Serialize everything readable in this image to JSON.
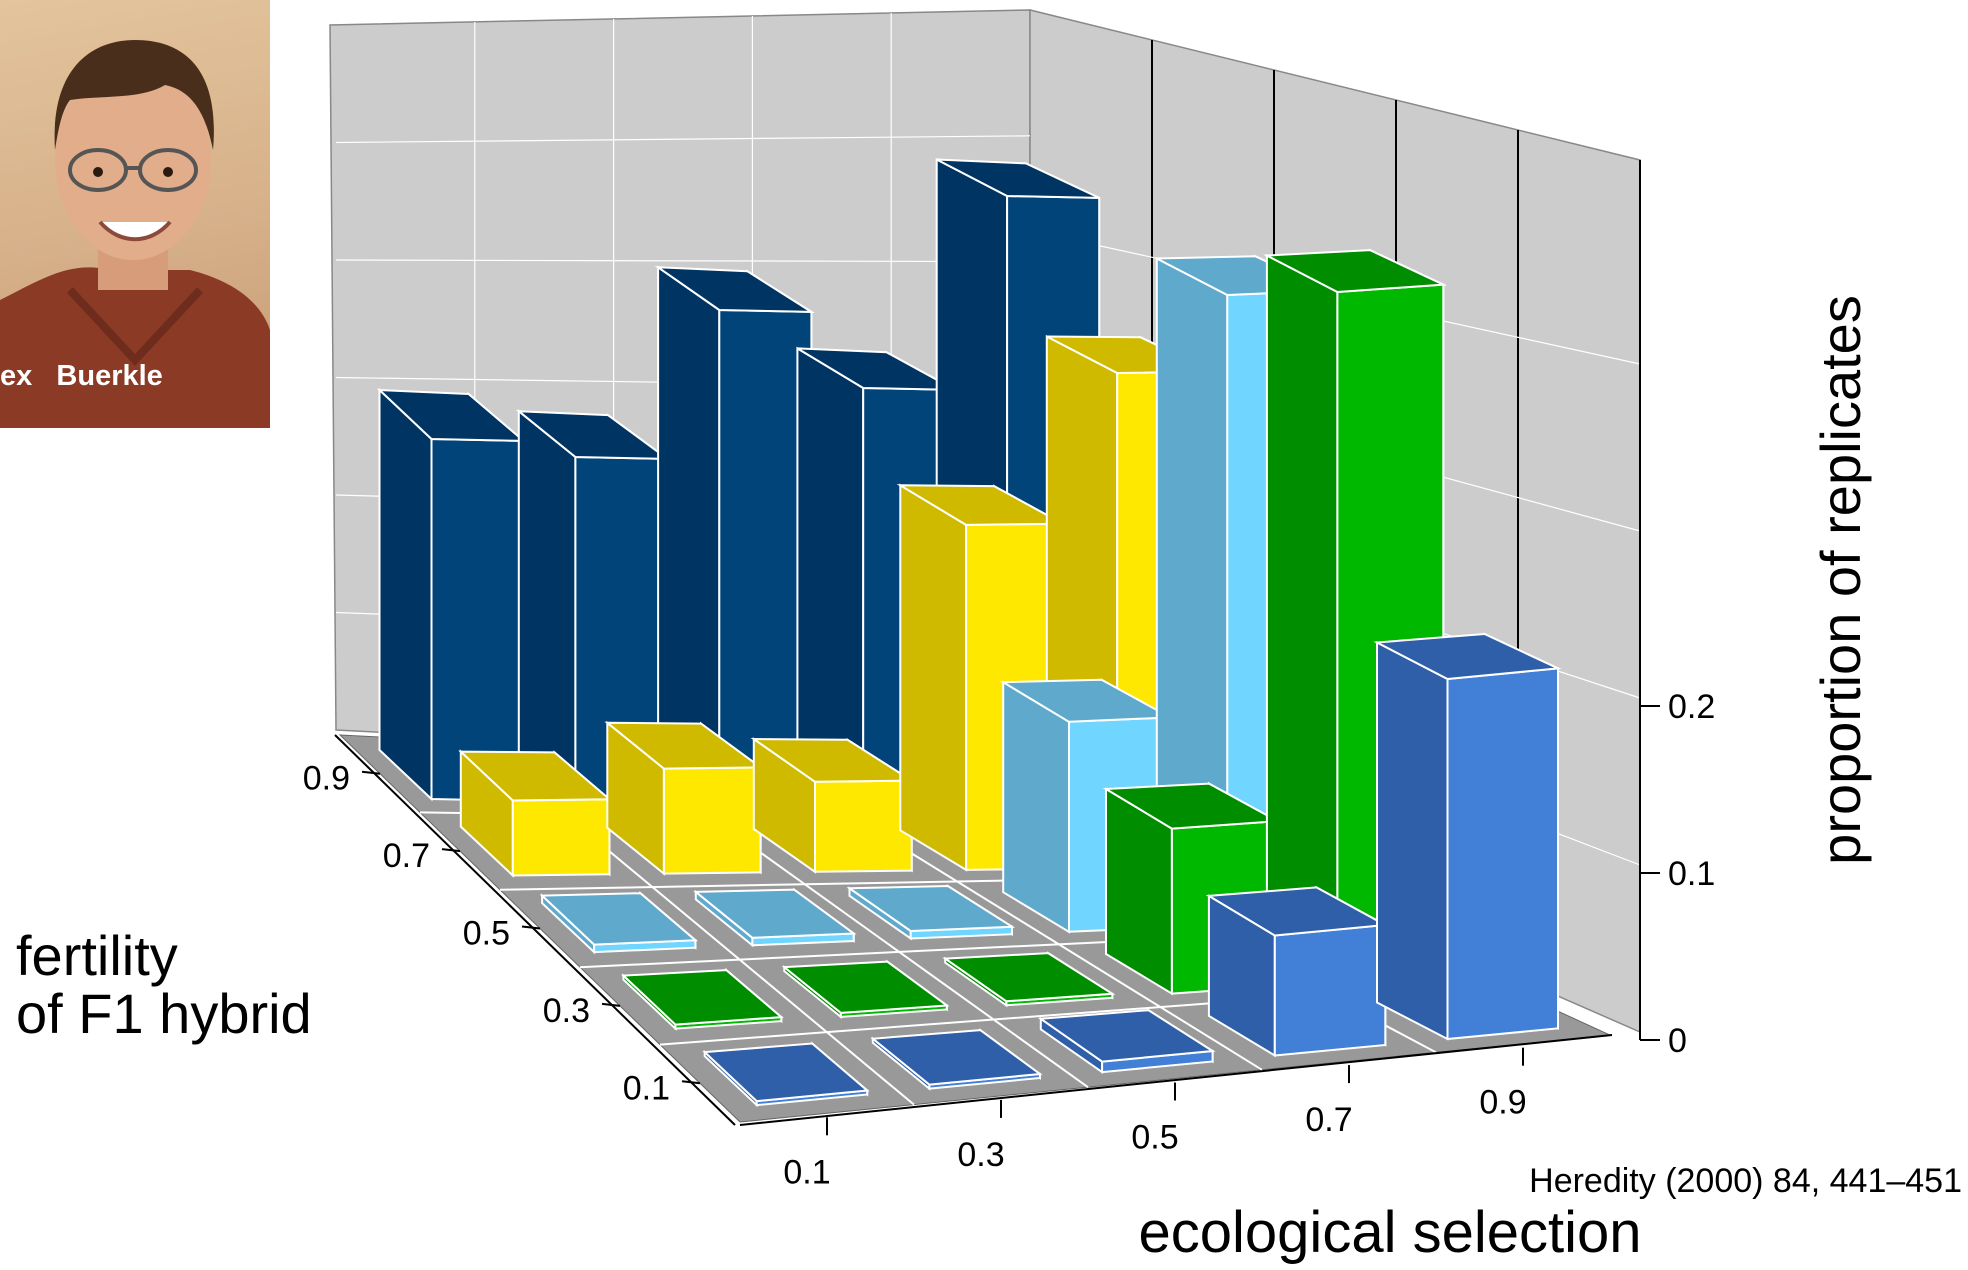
{
  "photo": {
    "caption": "ex   Buerkle",
    "description_icon": "portrait-photo"
  },
  "citation": "Heredity (2000) 84, 441–451",
  "chart_data": {
    "type": "bar",
    "projection": "3d",
    "x_axis": {
      "label": "ecological selection",
      "ticks": [
        "0.1",
        "0.3",
        "0.5",
        "0.7",
        "0.9"
      ]
    },
    "y_axis": {
      "label": "fertility\nof F1 hybrid",
      "ticks": [
        "0.1",
        "0.3",
        "0.5",
        "0.7",
        "0.9"
      ]
    },
    "z_axis": {
      "label": "proportion of replicates",
      "ticks": [
        "0",
        "0.1",
        "0.2"
      ],
      "range": [
        0,
        0.55
      ]
    },
    "grid": true,
    "series": [
      {
        "fertility": "0.9",
        "color_front": "#00447a",
        "color_side": "#003463",
        "values": [
          0.24,
          0.23,
          0.33,
          0.28,
          0.41
        ]
      },
      {
        "fertility": "0.7",
        "color_front": "#ffe800",
        "color_side": "#d0ba00",
        "values": [
          0.05,
          0.07,
          0.06,
          0.23,
          0.33
        ]
      },
      {
        "fertility": "0.5",
        "color_front": "#70d6ff",
        "color_side": "#5fa9cc",
        "values": [
          0.005,
          0.005,
          0.005,
          0.14,
          0.42
        ]
      },
      {
        "fertility": "0.3",
        "color_front": "#00b800",
        "color_side": "#008e00",
        "values": [
          0.0,
          0.0,
          0.0,
          0.11,
          0.46
        ]
      },
      {
        "fertility": "0.1",
        "color_front": "#4280d8",
        "color_side": "#2e5fa8",
        "values": [
          0.0,
          0.0,
          0.007,
          0.08,
          0.24
        ]
      }
    ],
    "colors": {
      "wall": "#cccccc",
      "floor": "#999999",
      "grid_line": "#ffffff",
      "axis": "#000000"
    }
  }
}
